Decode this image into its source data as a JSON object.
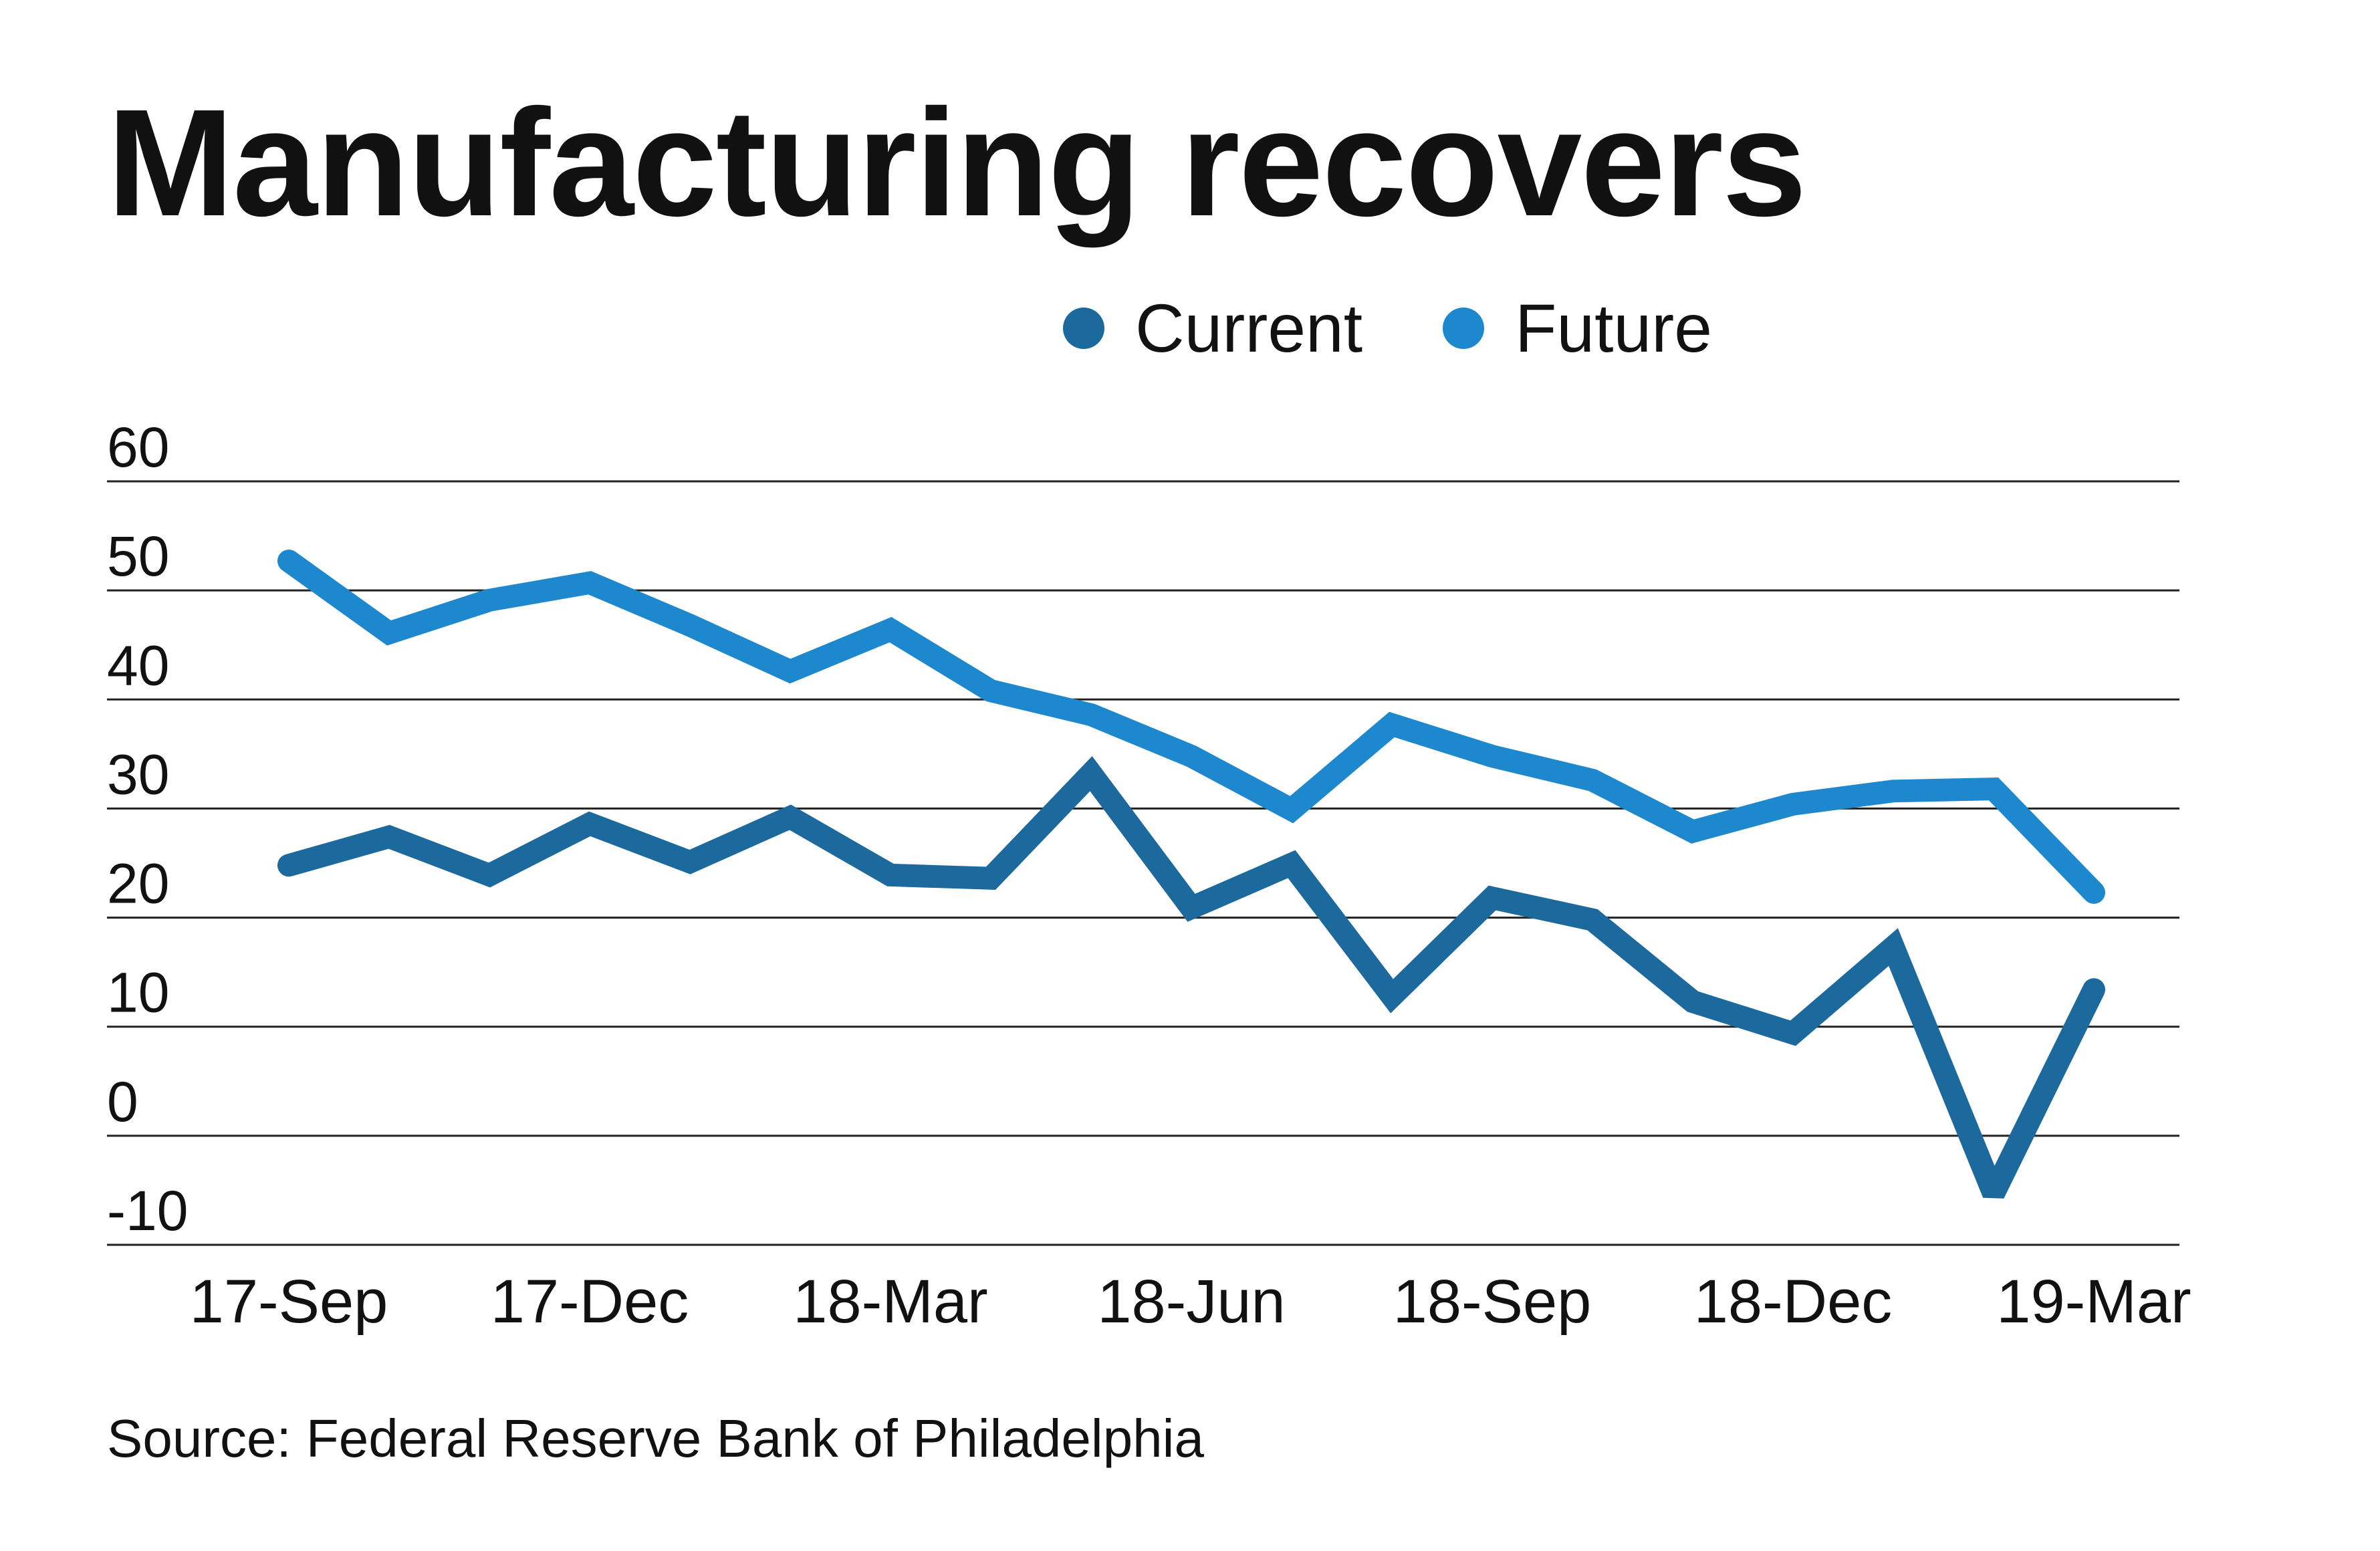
{
  "chart_data": {
    "type": "line",
    "title": "Manufacturing recovers",
    "source": "Source: Federal Reserve Bank of Philadelphia",
    "xlabel": "",
    "ylabel": "",
    "ylim": [
      -10,
      60
    ],
    "yticks": [
      60,
      50,
      40,
      30,
      20,
      10,
      0,
      -10
    ],
    "grid": true,
    "legend_position": "top-center",
    "x_tick_labels": [
      "17-Sep",
      "17-Dec",
      "18-Mar",
      "18-Jun",
      "18-Sep",
      "18-Dec",
      "19-Mar"
    ],
    "x": [
      "17-Sep",
      "17-Oct",
      "17-Nov",
      "17-Dec",
      "18-Jan",
      "18-Feb",
      "18-Mar",
      "18-Apr",
      "18-May",
      "18-Jun",
      "18-Jul",
      "18-Aug",
      "18-Sep",
      "18-Oct",
      "18-Nov",
      "18-Dec",
      "19-Jan",
      "19-Feb",
      "19-Mar"
    ],
    "series": [
      {
        "name": "Current",
        "color": "#1c699e",
        "values": [
          24.8,
          27.4,
          23.9,
          28.6,
          25.1,
          29.2,
          23.9,
          23.6,
          33.2,
          20.9,
          24.9,
          12.8,
          21.8,
          19.8,
          12.3,
          9.4,
          17.3,
          -5.3,
          13.4
        ]
      },
      {
        "name": "Future",
        "color": "#1e88cf",
        "values": [
          52.7,
          46.1,
          49.1,
          50.7,
          46.8,
          42.6,
          46.4,
          40.8,
          38.6,
          34.8,
          29.9,
          37.7,
          34.8,
          32.6,
          27.9,
          30.4,
          31.6,
          31.8,
          22.3
        ]
      }
    ]
  }
}
